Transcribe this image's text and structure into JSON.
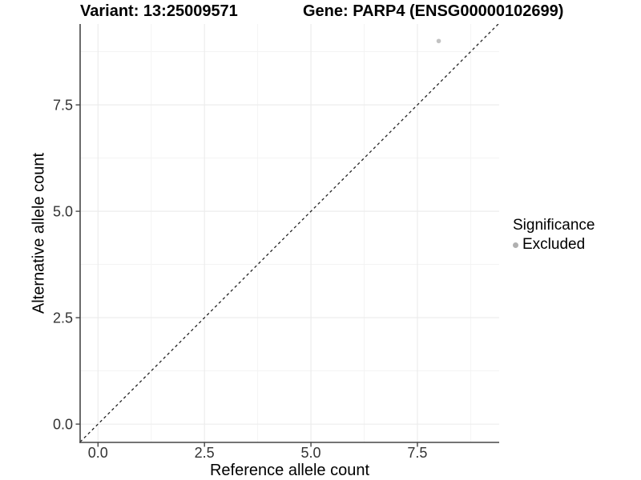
{
  "header": {
    "variant_title": "Variant: 13:25009571",
    "gene_title": "Gene: PARP4 (ENSG00000102699)"
  },
  "legend": {
    "title": "Significance",
    "items": [
      {
        "label": "Excluded",
        "color": "#b0b0b0"
      }
    ]
  },
  "chart_data": {
    "type": "scatter",
    "titles": [
      "Variant: 13:25009571",
      "Gene: PARP4 (ENSG00000102699)"
    ],
    "xlabel": "Reference allele count",
    "ylabel": "Alternative allele count",
    "xlim": [
      -0.42,
      9.42
    ],
    "ylim": [
      -0.43,
      9.4
    ],
    "x_ticks": [
      {
        "value": 0,
        "label": "0.0"
      },
      {
        "value": 2.5,
        "label": "2.5"
      },
      {
        "value": 5,
        "label": "5.0"
      },
      {
        "value": 7.5,
        "label": "7.5"
      }
    ],
    "y_ticks": [
      {
        "value": 0,
        "label": "0.0"
      },
      {
        "value": 2.5,
        "label": "2.5"
      },
      {
        "value": 5,
        "label": "5.0"
      },
      {
        "value": 7.5,
        "label": "7.5"
      }
    ],
    "minor_gridlines": [
      1.25,
      3.75,
      6.25,
      8.75
    ],
    "grid": "major+minor",
    "legend_position": "right",
    "series": [
      {
        "name": "Excluded",
        "color": "#c2c2c2",
        "points": [
          {
            "x": 8,
            "y": 9
          }
        ]
      }
    ],
    "reference_line": {
      "slope": 1,
      "intercept": 0,
      "style": "dashed",
      "color": "#222222"
    }
  },
  "style": {
    "background": "#ffffff",
    "grid_major": "#ebebeb",
    "grid_minor": "#f3f3f3",
    "axis_line": "#464646",
    "tick_color": "#464646",
    "tick_label_color": "#333333"
  }
}
